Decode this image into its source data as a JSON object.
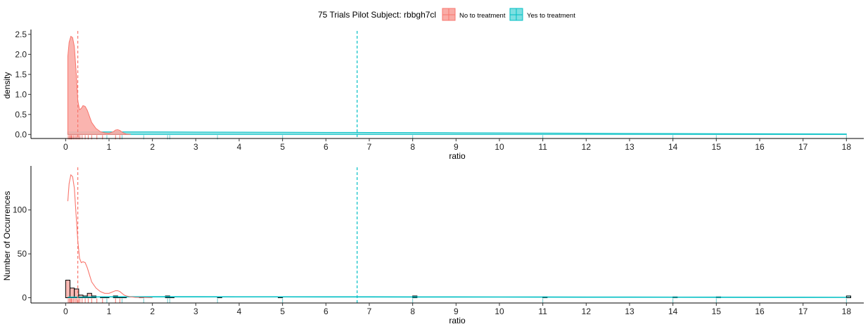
{
  "legend": {
    "title": "75 Trials Pilot Subject:  rbbgh7cl",
    "items": [
      {
        "label": "No to treatment",
        "color": "#f8766d",
        "fill": "#f9aca6"
      },
      {
        "label": "Yes to treatment",
        "color": "#00bfc4",
        "fill": "#7ddfe1"
      }
    ]
  },
  "chart_data": [
    {
      "type": "area",
      "panel": "top",
      "xlabel": "ratio",
      "ylabel": "density",
      "xlim": [
        -0.8,
        18.4
      ],
      "ylim": [
        -0.1,
        2.55
      ],
      "x_ticks": [
        0,
        1,
        2,
        3,
        4,
        5,
        6,
        7,
        8,
        9,
        10,
        11,
        12,
        13,
        14,
        15,
        16,
        17,
        18
      ],
      "y_ticks": [
        0.0,
        0.5,
        1.0,
        1.5,
        2.0,
        2.5
      ],
      "y_tick_labels": [
        "0.0",
        "0.5",
        "1.0",
        "1.5",
        "2.0",
        "2.5"
      ],
      "grid": false,
      "series": [
        {
          "name": "No to treatment",
          "color": "#f8766d",
          "fill": "#f9aca6",
          "x": [
            0.05,
            0.08,
            0.12,
            0.16,
            0.2,
            0.24,
            0.28,
            0.32,
            0.36,
            0.4,
            0.45,
            0.5,
            0.55,
            0.6,
            0.7,
            0.8,
            0.9,
            1.0,
            1.1,
            1.15,
            1.2,
            1.25,
            1.3,
            1.35,
            1.4,
            1.5
          ],
          "y": [
            1.95,
            2.3,
            2.45,
            2.42,
            2.2,
            1.6,
            0.85,
            0.62,
            0.65,
            0.72,
            0.7,
            0.6,
            0.45,
            0.3,
            0.15,
            0.07,
            0.04,
            0.03,
            0.07,
            0.11,
            0.12,
            0.1,
            0.06,
            0.03,
            0.01,
            0.0
          ],
          "mean_line": 0.28
        },
        {
          "name": "Yes to treatment",
          "color": "#00bfc4",
          "fill": "#7ddfe1",
          "x": [
            0.05,
            1,
            2,
            3,
            4,
            5,
            6,
            7,
            8,
            9,
            10,
            11,
            12,
            13,
            14,
            15,
            16,
            17,
            18
          ],
          "y": [
            0.06,
            0.065,
            0.065,
            0.06,
            0.058,
            0.055,
            0.052,
            0.05,
            0.047,
            0.043,
            0.04,
            0.036,
            0.032,
            0.028,
            0.024,
            0.021,
            0.018,
            0.016,
            0.015
          ],
          "mean_line": 6.72
        }
      ],
      "rug": {
        "No to treatment": [
          0.06,
          0.09,
          0.11,
          0.13,
          0.15,
          0.18,
          0.21,
          0.24,
          0.27,
          0.3,
          0.33,
          0.38,
          0.45,
          0.52,
          0.6,
          0.72,
          0.85,
          1.15,
          1.25
        ],
        "Yes to treatment": [
          0.95,
          1.3,
          1.8,
          2.35,
          2.4,
          3.5,
          5.0,
          8.0,
          11.0,
          14.0,
          15.0,
          18.0
        ]
      }
    },
    {
      "type": "bar",
      "panel": "bottom",
      "xlabel": "ratio",
      "ylabel": "Number of Occurrences",
      "xlim": [
        -0.8,
        18.4
      ],
      "ylim": [
        -6,
        147
      ],
      "x_ticks": [
        0,
        1,
        2,
        3,
        4,
        5,
        6,
        7,
        8,
        9,
        10,
        11,
        12,
        13,
        14,
        15,
        16,
        17,
        18
      ],
      "y_ticks": [
        0,
        50,
        100
      ],
      "y_tick_labels": [
        "0",
        "50",
        "100"
      ],
      "grid": false,
      "bin_width": 0.1,
      "series": [
        {
          "name": "No to treatment",
          "color": "#f8766d",
          "fill": "#f9aca6",
          "bins": [
            [
              0.05,
              20
            ],
            [
              0.15,
              11
            ],
            [
              0.25,
              10
            ],
            [
              0.35,
              3
            ],
            [
              0.45,
              2
            ],
            [
              0.55,
              5
            ],
            [
              0.65,
              2
            ],
            [
              0.75,
              0
            ],
            [
              0.85,
              1
            ],
            [
              1.15,
              2
            ],
            [
              1.25,
              1
            ]
          ],
          "density_x": [
            0.05,
            0.08,
            0.12,
            0.16,
            0.2,
            0.24,
            0.28,
            0.32,
            0.36,
            0.4,
            0.45,
            0.5,
            0.55,
            0.6,
            0.7,
            0.8,
            0.9,
            1.0,
            1.1,
            1.15,
            1.2,
            1.25,
            1.3,
            1.35,
            1.4,
            1.5,
            1.6,
            2.0
          ],
          "density_y": [
            110,
            130,
            140,
            138,
            125,
            95,
            65,
            45,
            40,
            41,
            40,
            34,
            26,
            18,
            11,
            7,
            5,
            5,
            7,
            8,
            8,
            7,
            5,
            3,
            2,
            1,
            0.5,
            0
          ],
          "mean_line": 0.28
        },
        {
          "name": "Yes to treatment",
          "color": "#00bfc4",
          "fill": "#7ddfe1",
          "bins": [
            [
              0.95,
              1
            ],
            [
              1.35,
              1
            ],
            [
              1.75,
              1
            ],
            [
              2.35,
              2
            ],
            [
              2.45,
              1
            ],
            [
              3.55,
              1
            ],
            [
              4.95,
              1
            ],
            [
              8.05,
              2
            ],
            [
              11.05,
              1
            ],
            [
              14.05,
              1
            ],
            [
              15.05,
              1
            ],
            [
              18.05,
              2
            ]
          ],
          "density_x": [
            0.05,
            1,
            2,
            3,
            4,
            5,
            6,
            7,
            8,
            9,
            10,
            11,
            12,
            13,
            14,
            15,
            16,
            17,
            18
          ],
          "density_y": [
            0.6,
            1.0,
            1.05,
            1.05,
            1.0,
            1.0,
            0.95,
            0.95,
            0.9,
            0.85,
            0.8,
            0.75,
            0.7,
            0.65,
            0.6,
            0.55,
            0.5,
            0.45,
            0.4
          ],
          "mean_line": 6.72
        }
      ],
      "rug": {
        "No to treatment": [
          0.06,
          0.09,
          0.11,
          0.13,
          0.15,
          0.18,
          0.21,
          0.24,
          0.27,
          0.3,
          0.33,
          0.38,
          0.45,
          0.52,
          0.6,
          0.72,
          0.85,
          1.15,
          1.25
        ],
        "Yes to treatment": [
          0.95,
          1.3,
          1.8,
          2.35,
          2.4,
          3.5,
          5.0,
          8.0,
          11.0,
          14.0,
          15.0,
          18.0
        ]
      }
    }
  ]
}
